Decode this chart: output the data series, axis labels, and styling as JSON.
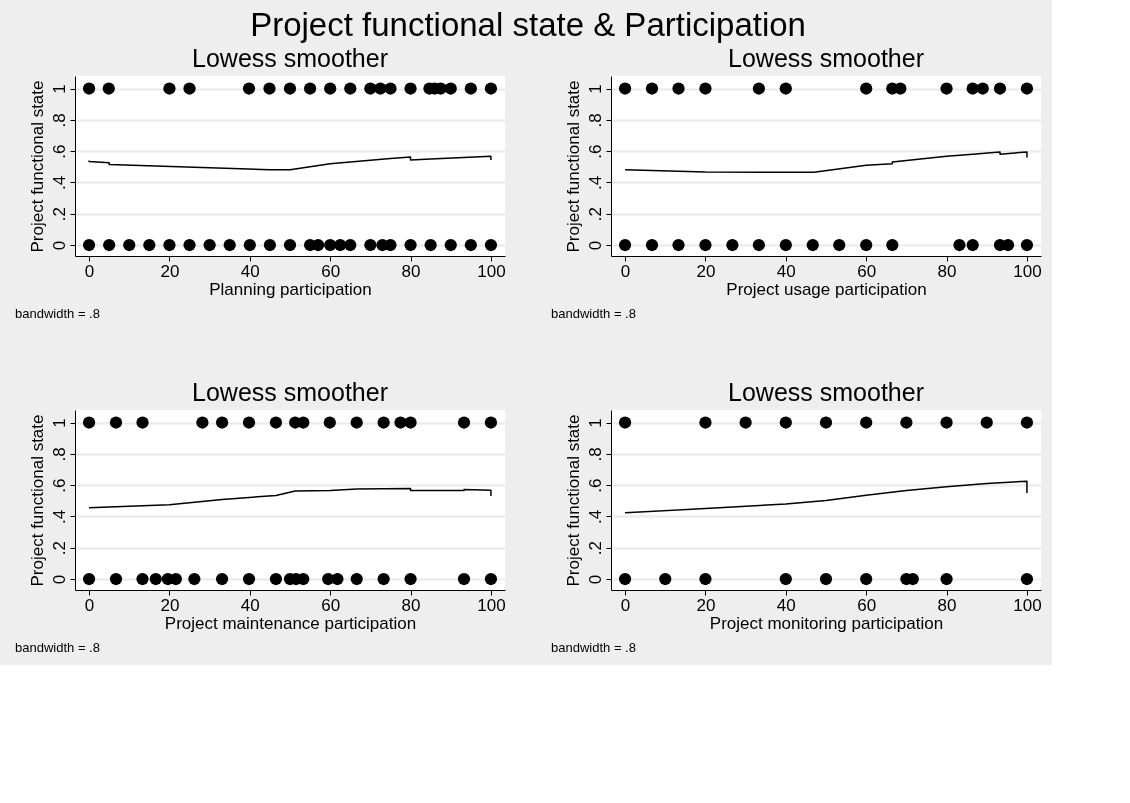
{
  "chart_data": [
    {
      "type": "scatter",
      "title": "Project functional state & Participation",
      "subtitle": "Lowess smoother",
      "xlabel": "Planning participation",
      "ylabel": "Project functional state",
      "annotations": [
        "bandwidth = .8"
      ],
      "xlim": [
        -3.5,
        103.5
      ],
      "ylim": [
        -0.07,
        1.08
      ],
      "xticks": [
        0,
        20,
        40,
        60,
        80,
        100
      ],
      "yticks": [
        0,
        {
          "value": 0.2,
          "label": ".2"
        },
        {
          "value": 0.4,
          "label": ".4"
        },
        {
          "value": 0.6,
          "label": ".6"
        },
        {
          "value": 0.8,
          "label": ".8"
        },
        1
      ],
      "grid": "y",
      "marker": "circle",
      "legend": false,
      "series": [
        {
          "type": "scatter",
          "color": "#000000",
          "x": [
            0,
            4.9,
            20,
            25,
            39.8,
            44.9,
            50,
            55,
            60,
            65,
            70,
            72.5,
            75,
            80,
            84.7,
            86,
            87.5,
            90,
            95,
            100,
            0,
            5,
            10,
            15,
            20,
            25,
            30,
            35,
            40,
            45,
            50,
            55,
            57,
            60,
            62.5,
            65,
            70,
            73,
            75,
            80,
            85,
            90,
            95,
            100
          ],
          "values": [
            1,
            1,
            1,
            1,
            1,
            1,
            1,
            1,
            1,
            1,
            1,
            1,
            1,
            1,
            1,
            1,
            1,
            1,
            1,
            1,
            0,
            0,
            0,
            0,
            0,
            0,
            0,
            0,
            0,
            0,
            0,
            0,
            0,
            0,
            0,
            0,
            0,
            0,
            0,
            0,
            0,
            0,
            0,
            0
          ]
        },
        {
          "type": "line",
          "color": "#000000",
          "line_style": "solid",
          "marker": "none",
          "x": [
            0,
            0,
            5,
            5,
            45,
            50,
            60,
            65,
            75,
            80,
            80,
            85,
            100,
            100
          ],
          "values": [
            0.54,
            0.533,
            0.525,
            0.515,
            0.481,
            0.481,
            0.519,
            0.53,
            0.553,
            0.563,
            0.544,
            0.55,
            0.567,
            0.544
          ]
        }
      ]
    },
    {
      "type": "scatter",
      "title": "Lowess smoother",
      "xlabel": "Project usage participation",
      "ylabel": "Project functional state",
      "annotations": [
        "bandwidth = .8"
      ],
      "xlim": [
        -3.5,
        103.5
      ],
      "ylim": [
        -0.07,
        1.08
      ],
      "xticks": [
        0,
        20,
        40,
        60,
        80,
        100
      ],
      "yticks": [
        0,
        {
          "value": 0.2,
          "label": ".2"
        },
        {
          "value": 0.4,
          "label": ".4"
        },
        {
          "value": 0.6,
          "label": ".6"
        },
        {
          "value": 0.8,
          "label": ".8"
        },
        1
      ],
      "grid": "y",
      "marker": "circle",
      "legend": false,
      "series": [
        {
          "type": "scatter",
          "color": "#000000",
          "x": [
            0,
            6.7,
            13.3,
            20,
            33.3,
            40,
            60,
            66.5,
            68.5,
            80,
            86.5,
            89,
            93.3,
            100,
            0,
            6.7,
            13.3,
            20,
            26.7,
            33.3,
            40,
            46.7,
            53.3,
            60,
            66.5,
            83.2,
            86.5,
            93.3,
            95.3,
            100
          ],
          "values": [
            1,
            1,
            1,
            1,
            1,
            1,
            1,
            1,
            1,
            1,
            1,
            1,
            1,
            1,
            0,
            0,
            0,
            0,
            0,
            0,
            0,
            0,
            0,
            0,
            0,
            0,
            0,
            0,
            0,
            0
          ]
        },
        {
          "type": "line",
          "color": "#000000",
          "line_style": "solid",
          "marker": "none",
          "x": [
            0,
            20,
            47,
            60,
            66.5,
            66.5,
            80,
            86.5,
            93.3,
            93.3,
            100,
            100
          ],
          "values": [
            0.481,
            0.466,
            0.465,
            0.51,
            0.52,
            0.53,
            0.567,
            0.58,
            0.594,
            0.58,
            0.595,
            0.56
          ]
        }
      ]
    },
    {
      "type": "scatter",
      "title": "Lowess smoother",
      "xlabel": "Project maintenance participation",
      "ylabel": "Project functional state",
      "annotations": [
        "bandwidth = .8"
      ],
      "xlim": [
        -3.5,
        103.5
      ],
      "ylim": [
        -0.07,
        1.08
      ],
      "xticks": [
        0,
        20,
        40,
        60,
        80,
        100
      ],
      "yticks": [
        0,
        {
          "value": 0.2,
          "label": ".2"
        },
        {
          "value": 0.4,
          "label": ".4"
        },
        {
          "value": 0.6,
          "label": ".6"
        },
        {
          "value": 0.8,
          "label": ".8"
        },
        1
      ],
      "grid": "y",
      "marker": "circle",
      "legend": false,
      "series": [
        {
          "type": "scatter",
          "color": "#000000",
          "x": [
            0,
            6.7,
            13.3,
            28.2,
            33.1,
            39.8,
            46.5,
            51.3,
            53.3,
            59.9,
            66.6,
            73.3,
            77.5,
            80,
            93.3,
            100,
            0,
            6.7,
            13.3,
            16.6,
            19.6,
            21.6,
            26.2,
            33.1,
            39.8,
            46.5,
            50,
            51.5,
            53.3,
            59.5,
            61.8,
            66.6,
            73.3,
            80,
            93.3,
            100
          ],
          "values": [
            1,
            1,
            1,
            1,
            1,
            1,
            1,
            1,
            1,
            1,
            1,
            1,
            1,
            1,
            1,
            1,
            0,
            0,
            0,
            0,
            0,
            0,
            0,
            0,
            0,
            0,
            0,
            0,
            0,
            0,
            0,
            0,
            0,
            0,
            0,
            0
          ]
        },
        {
          "type": "line",
          "color": "#000000",
          "line_style": "solid",
          "marker": "none",
          "x": [
            0,
            20,
            33.1,
            46.5,
            51.3,
            60,
            66.6,
            80,
            80,
            93.3,
            93.3,
            100,
            100
          ],
          "values": [
            0.456,
            0.475,
            0.508,
            0.534,
            0.563,
            0.565,
            0.575,
            0.578,
            0.565,
            0.565,
            0.572,
            0.568,
            0.53
          ]
        }
      ]
    },
    {
      "type": "scatter",
      "title": "Lowess smoother",
      "xlabel": "Project monitoring participation",
      "ylabel": "Project functional state",
      "annotations": [
        "bandwidth = .8"
      ],
      "xlim": [
        -3.5,
        103.5
      ],
      "ylim": [
        -0.07,
        1.08
      ],
      "xticks": [
        0,
        20,
        40,
        60,
        80,
        100
      ],
      "yticks": [
        0,
        {
          "value": 0.2,
          "label": ".2"
        },
        {
          "value": 0.4,
          "label": ".4"
        },
        {
          "value": 0.6,
          "label": ".6"
        },
        {
          "value": 0.8,
          "label": ".8"
        },
        1
      ],
      "grid": "y",
      "marker": "circle",
      "legend": false,
      "series": [
        {
          "type": "scatter",
          "color": "#000000",
          "x": [
            0,
            20,
            30,
            40,
            50,
            60,
            70,
            80,
            90,
            100,
            0,
            10,
            20,
            40,
            50,
            60,
            70,
            71.6,
            80,
            100
          ],
          "values": [
            1,
            1,
            1,
            1,
            1,
            1,
            1,
            1,
            1,
            1,
            0,
            0,
            0,
            0,
            0,
            0,
            0,
            0,
            0,
            0
          ]
        },
        {
          "type": "line",
          "color": "#000000",
          "line_style": "solid",
          "marker": "none",
          "x": [
            0,
            20,
            40,
            50,
            60,
            70,
            80,
            90,
            100,
            100
          ],
          "values": [
            0.423,
            0.45,
            0.48,
            0.502,
            0.535,
            0.565,
            0.59,
            0.61,
            0.625,
            0.55
          ]
        }
      ]
    }
  ]
}
